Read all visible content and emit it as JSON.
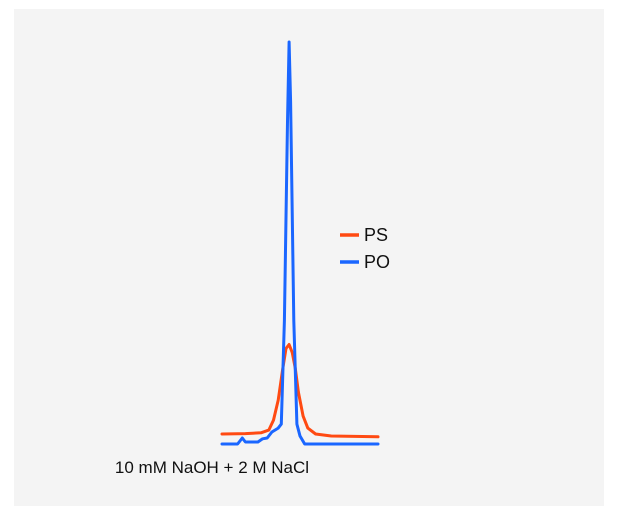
{
  "chart_data": {
    "type": "line",
    "title": "",
    "xlabel": "",
    "ylabel": "",
    "caption": "10 mM NaOH + 2 M NaCl",
    "axes_visible": false,
    "grid": false,
    "legend_position": "right",
    "xlim": [
      0,
      100
    ],
    "ylim": [
      0,
      100
    ],
    "series": [
      {
        "name": "PS",
        "color": "#ff4a12",
        "points": [
          [
            0,
            1.5
          ],
          [
            15,
            1.6
          ],
          [
            25,
            1.8
          ],
          [
            30,
            2.5
          ],
          [
            33,
            5
          ],
          [
            36,
            10
          ],
          [
            39,
            18
          ],
          [
            41,
            23
          ],
          [
            43,
            24
          ],
          [
            45,
            22
          ],
          [
            47,
            18
          ],
          [
            49,
            12
          ],
          [
            52,
            6
          ],
          [
            55,
            3
          ],
          [
            60,
            1.5
          ],
          [
            70,
            1
          ],
          [
            100,
            0.8
          ]
        ]
      },
      {
        "name": "PO",
        "color": "#1a66ff",
        "points": [
          [
            0,
            -1
          ],
          [
            10,
            -1
          ],
          [
            13,
            0.5
          ],
          [
            15,
            -0.5
          ],
          [
            23,
            -0.5
          ],
          [
            26,
            0.3
          ],
          [
            29,
            0.5
          ],
          [
            32,
            2
          ],
          [
            36,
            3
          ],
          [
            38,
            4
          ],
          [
            40,
            30
          ],
          [
            42,
            80
          ],
          [
            43,
            100
          ],
          [
            44,
            85
          ],
          [
            46,
            30
          ],
          [
            48,
            4
          ],
          [
            50,
            1
          ],
          [
            53,
            -1
          ],
          [
            100,
            -1
          ]
        ]
      }
    ]
  }
}
